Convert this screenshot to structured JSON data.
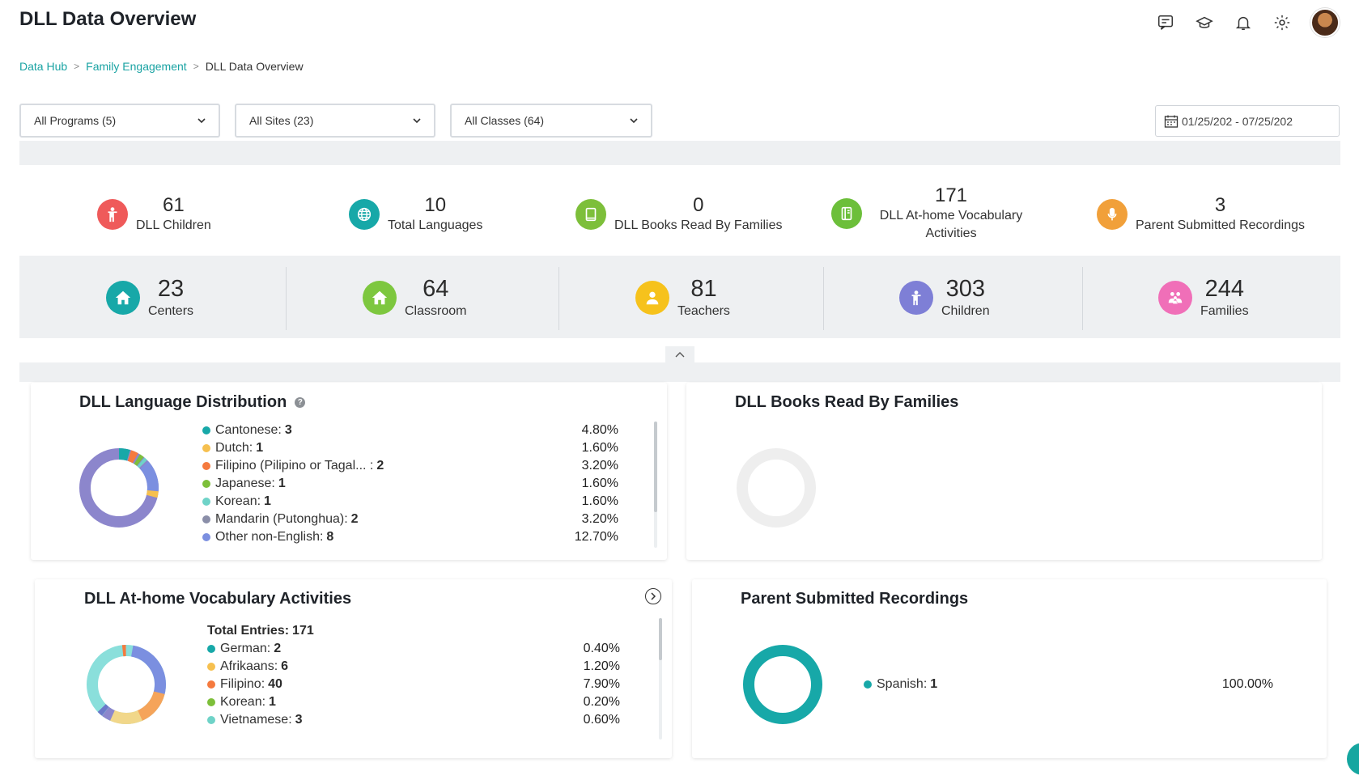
{
  "header": {
    "title": "DLL Data Overview"
  },
  "top_icons": [
    "chat-icon",
    "graduation-cap-icon",
    "bell-icon",
    "gear-icon",
    "avatar"
  ],
  "breadcrumb": {
    "items": [
      "Data Hub",
      "Family Engagement"
    ],
    "current": "DLL Data Overview",
    "separator": ">"
  },
  "filters": {
    "programs": "All Programs (5)",
    "sites": "All Sites (23)",
    "classes": "All Classes (64)",
    "date_range": "01/25/202 - 07/25/202"
  },
  "stats_top": [
    {
      "value": "61",
      "label": "DLL Children",
      "icon": "child-icon",
      "color": "#ef5a5a"
    },
    {
      "value": "10",
      "label": "Total Languages",
      "icon": "globe-icon",
      "color": "#17a8a8"
    },
    {
      "value": "0",
      "label": "DLL Books Read By Families",
      "icon": "book-icon",
      "color": "#7dbf3a"
    },
    {
      "value": "171",
      "label": "DLL At-home Vocabulary Activities",
      "icon": "notebook-icon",
      "color": "#6cbf3a"
    },
    {
      "value": "3",
      "label": "Parent Submitted Recordings",
      "icon": "microphone-icon",
      "color": "#f1a03a"
    }
  ],
  "stats_bottom": [
    {
      "value": "23",
      "label": "Centers",
      "icon": "house-icon",
      "color": "#17a8a8"
    },
    {
      "value": "64",
      "label": "Classroom",
      "icon": "house-icon",
      "color": "#7dc73f"
    },
    {
      "value": "81",
      "label": "Teachers",
      "icon": "person-icon",
      "color": "#f6c21c"
    },
    {
      "value": "303",
      "label": "Children",
      "icon": "child-icon",
      "color": "#7e7fd6"
    },
    {
      "value": "244",
      "label": "Families",
      "icon": "family-icon",
      "color": "#f06fb8"
    }
  ],
  "language_distribution": {
    "title": "DLL Language Distribution",
    "items": [
      {
        "name": "Cantonese:",
        "count": "3",
        "pct": "4.80%",
        "color": "#17a8a8"
      },
      {
        "name": "Dutch:",
        "count": "1",
        "pct": "1.60%",
        "color": "#f6c04f"
      },
      {
        "name": "Filipino (Pilipino or Tagal... :",
        "count": "2",
        "pct": "3.20%",
        "color": "#f57a3e"
      },
      {
        "name": "Japanese:",
        "count": "1",
        "pct": "1.60%",
        "color": "#7dbf3a"
      },
      {
        "name": "Korean:",
        "count": "1",
        "pct": "1.60%",
        "color": "#6fd3c8"
      },
      {
        "name": "Mandarin (Putonghua):",
        "count": "2",
        "pct": "3.20%",
        "color": "#8a8ea8"
      },
      {
        "name": "Other non-English:",
        "count": "8",
        "pct": "12.70%",
        "color": "#7b8fe0"
      }
    ]
  },
  "books_read": {
    "title": "DLL Books Read By Families"
  },
  "vocabulary": {
    "title": "DLL At-home Vocabulary Activities",
    "total_label": "Total Entries:",
    "total_value": "171",
    "items": [
      {
        "name": "German:",
        "count": "2",
        "pct": "0.40%",
        "color": "#17a8a8"
      },
      {
        "name": "Afrikaans:",
        "count": "6",
        "pct": "1.20%",
        "color": "#f6c04f"
      },
      {
        "name": "Filipino:",
        "count": "40",
        "pct": "7.90%",
        "color": "#f57a3e"
      },
      {
        "name": "Korean:",
        "count": "1",
        "pct": "0.20%",
        "color": "#7dbf3a"
      },
      {
        "name": "Vietnamese:",
        "count": "3",
        "pct": "0.60%",
        "color": "#6fd3c8"
      }
    ]
  },
  "recordings": {
    "title": "Parent Submitted Recordings",
    "items": [
      {
        "name": "Spanish:",
        "count": "1",
        "pct": "100.00%",
        "color": "#17a8a8"
      }
    ]
  },
  "colors": {
    "accent": "#17a8a8",
    "band": "#eef0f2"
  }
}
